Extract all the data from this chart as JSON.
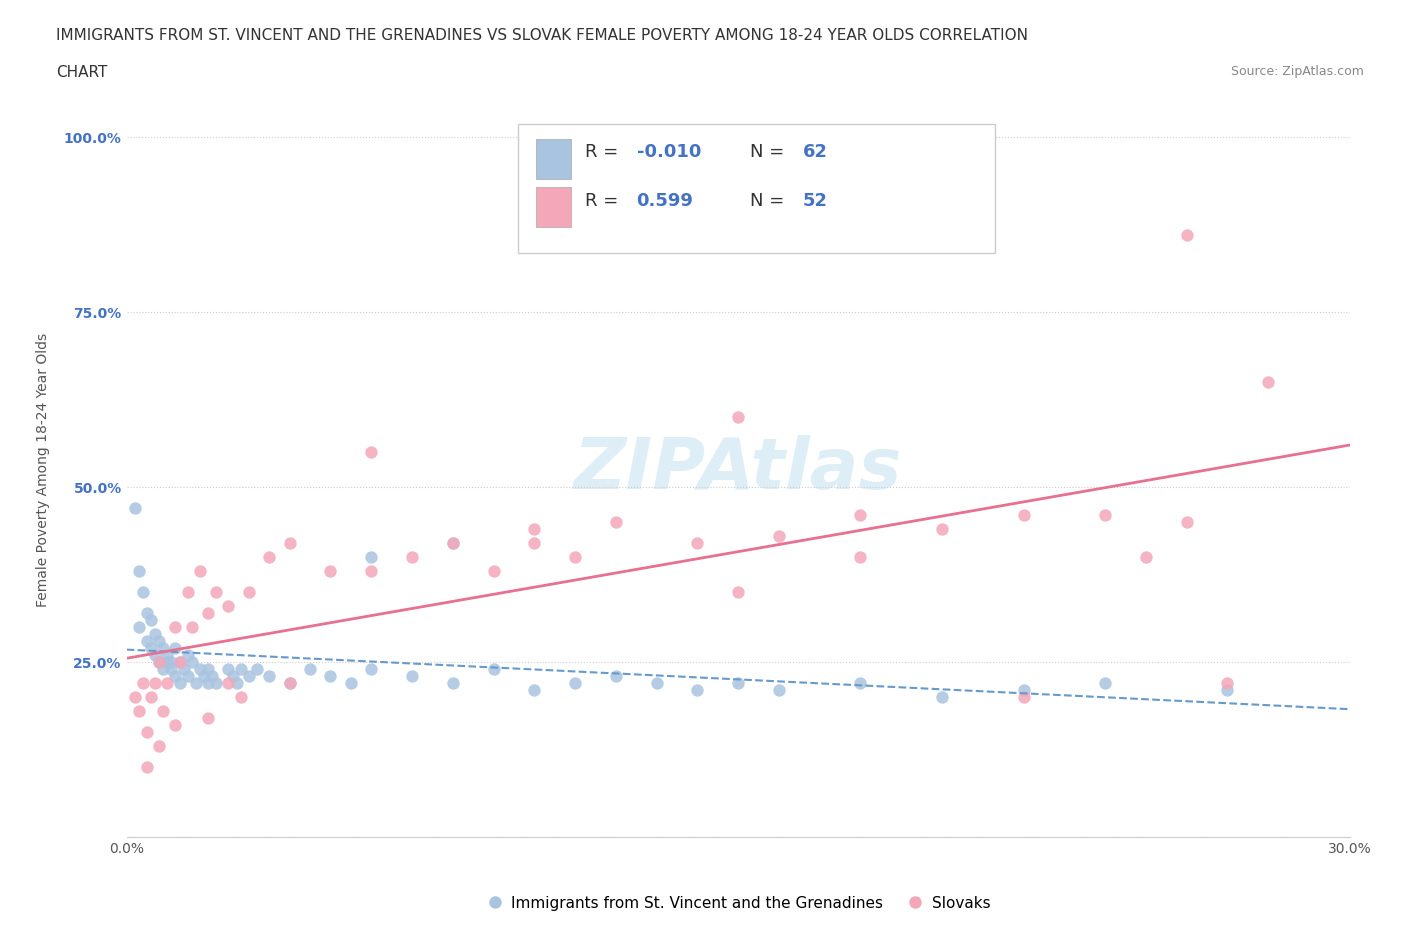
{
  "title_line1": "IMMIGRANTS FROM ST. VINCENT AND THE GRENADINES VS SLOVAK FEMALE POVERTY AMONG 18-24 YEAR OLDS CORRELATION",
  "title_line2": "CHART",
  "source_text": "Source: ZipAtlas.com",
  "ylabel": "Female Poverty Among 18-24 Year Olds",
  "xlim": [
    0.0,
    0.3
  ],
  "ylim": [
    0.0,
    1.05
  ],
  "xticks": [
    0.0,
    0.05,
    0.1,
    0.15,
    0.2,
    0.25,
    0.3
  ],
  "xticklabels": [
    "0.0%",
    "",
    "",
    "",
    "",
    "",
    "30.0%"
  ],
  "yticks": [
    0.0,
    0.25,
    0.5,
    0.75,
    1.0
  ],
  "yticklabels": [
    "",
    "25.0%",
    "50.0%",
    "75.0%",
    "100.0%"
  ],
  "blue_color": "#a8c4e0",
  "pink_color": "#f4a7b9",
  "blue_line_color": "#6699cc",
  "pink_line_color": "#e87090",
  "legend_label1": "Immigrants from St. Vincent and the Grenadines",
  "legend_label2": "Slovaks",
  "watermark": "ZIPAtlas",
  "blue_x": [
    0.002,
    0.003,
    0.003,
    0.004,
    0.005,
    0.005,
    0.006,
    0.006,
    0.007,
    0.007,
    0.008,
    0.008,
    0.009,
    0.009,
    0.01,
    0.01,
    0.011,
    0.011,
    0.012,
    0.012,
    0.013,
    0.013,
    0.014,
    0.015,
    0.015,
    0.016,
    0.017,
    0.018,
    0.019,
    0.02,
    0.02,
    0.021,
    0.022,
    0.025,
    0.026,
    0.027,
    0.028,
    0.03,
    0.032,
    0.035,
    0.04,
    0.045,
    0.05,
    0.055,
    0.06,
    0.07,
    0.08,
    0.09,
    0.1,
    0.11,
    0.12,
    0.13,
    0.14,
    0.15,
    0.16,
    0.18,
    0.2,
    0.22,
    0.24,
    0.27,
    0.06,
    0.08
  ],
  "blue_y": [
    0.47,
    0.38,
    0.3,
    0.35,
    0.28,
    0.32,
    0.27,
    0.31,
    0.26,
    0.29,
    0.25,
    0.28,
    0.24,
    0.27,
    0.25,
    0.26,
    0.24,
    0.25,
    0.23,
    0.27,
    0.22,
    0.25,
    0.24,
    0.26,
    0.23,
    0.25,
    0.22,
    0.24,
    0.23,
    0.22,
    0.24,
    0.23,
    0.22,
    0.24,
    0.23,
    0.22,
    0.24,
    0.23,
    0.24,
    0.23,
    0.22,
    0.24,
    0.23,
    0.22,
    0.24,
    0.23,
    0.22,
    0.24,
    0.21,
    0.22,
    0.23,
    0.22,
    0.21,
    0.22,
    0.21,
    0.22,
    0.2,
    0.21,
    0.22,
    0.21,
    0.4,
    0.42
  ],
  "pink_x": [
    0.002,
    0.003,
    0.004,
    0.005,
    0.006,
    0.007,
    0.008,
    0.009,
    0.01,
    0.012,
    0.013,
    0.015,
    0.016,
    0.018,
    0.02,
    0.022,
    0.025,
    0.028,
    0.03,
    0.035,
    0.04,
    0.05,
    0.06,
    0.07,
    0.08,
    0.09,
    0.1,
    0.11,
    0.12,
    0.14,
    0.15,
    0.16,
    0.18,
    0.2,
    0.22,
    0.24,
    0.25,
    0.26,
    0.27,
    0.28,
    0.005,
    0.008,
    0.012,
    0.02,
    0.025,
    0.04,
    0.06,
    0.1,
    0.15,
    0.18,
    0.22,
    0.26
  ],
  "pink_y": [
    0.2,
    0.18,
    0.22,
    0.15,
    0.2,
    0.22,
    0.25,
    0.18,
    0.22,
    0.3,
    0.25,
    0.35,
    0.3,
    0.38,
    0.32,
    0.35,
    0.33,
    0.2,
    0.35,
    0.4,
    0.42,
    0.38,
    0.55,
    0.4,
    0.42,
    0.38,
    0.44,
    0.4,
    0.45,
    0.42,
    0.6,
    0.43,
    0.46,
    0.44,
    0.2,
    0.46,
    0.4,
    0.45,
    0.22,
    0.65,
    0.1,
    0.13,
    0.16,
    0.17,
    0.22,
    0.22,
    0.38,
    0.42,
    0.35,
    0.4,
    0.46,
    0.86
  ]
}
